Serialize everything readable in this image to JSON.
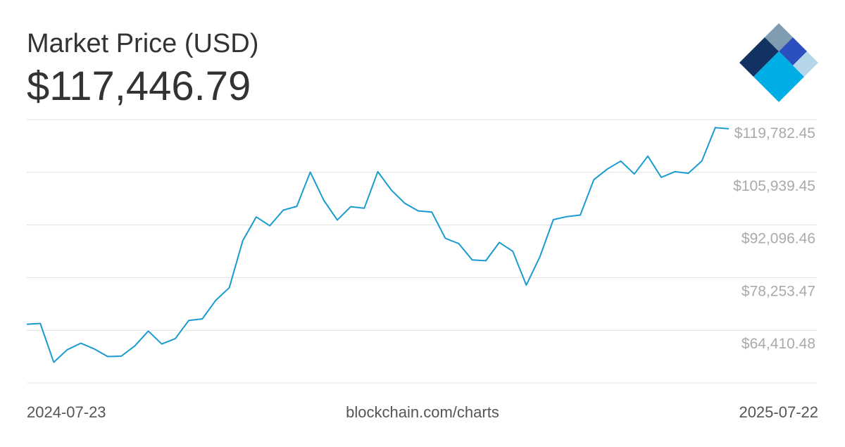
{
  "chart_data": {
    "type": "line",
    "title": "Market Price (USD)",
    "price": "$117,446.79",
    "source": "blockchain.com/charts",
    "x_start_label": "2024-07-23",
    "x_end_label": "2025-07-22",
    "color": "#1a9bd0",
    "grid": true,
    "xlim": [
      "2024-07-23",
      "2025-07-22"
    ],
    "ylim": [
      50567.5,
      119782.45
    ],
    "yticks": [
      {
        "value": 64410.48,
        "label": "$64,410.48"
      },
      {
        "value": 78253.47,
        "label": "$78,253.47"
      },
      {
        "value": 92096.46,
        "label": "$92,096.46"
      },
      {
        "value": 105939.45,
        "label": "$105,939.45"
      },
      {
        "value": 119782.45,
        "label": "$119,782.45"
      }
    ],
    "x": [
      "2024-07-23",
      "2024-07-30",
      "2024-08-06",
      "2024-08-13",
      "2024-08-20",
      "2024-08-27",
      "2024-09-03",
      "2024-09-10",
      "2024-09-17",
      "2024-09-24",
      "2024-10-01",
      "2024-10-08",
      "2024-10-15",
      "2024-10-22",
      "2024-10-29",
      "2024-11-05",
      "2024-11-12",
      "2024-11-19",
      "2024-11-26",
      "2024-12-03",
      "2024-12-10",
      "2024-12-17",
      "2024-12-24",
      "2024-12-31",
      "2025-01-07",
      "2025-01-14",
      "2025-01-21",
      "2025-01-28",
      "2025-02-04",
      "2025-02-11",
      "2025-02-18",
      "2025-02-25",
      "2025-03-04",
      "2025-03-11",
      "2025-03-18",
      "2025-03-25",
      "2025-04-01",
      "2025-04-08",
      "2025-04-15",
      "2025-04-22",
      "2025-04-29",
      "2025-05-06",
      "2025-05-13",
      "2025-05-20",
      "2025-05-27",
      "2025-06-03",
      "2025-06-10",
      "2025-06-17",
      "2025-06-24",
      "2025-07-01",
      "2025-07-08",
      "2025-07-15",
      "2025-07-22"
    ],
    "values": [
      66000,
      66200,
      56000,
      59300,
      61000,
      59500,
      57500,
      57600,
      60300,
      64200,
      60800,
      62200,
      67000,
      67400,
      72300,
      75600,
      88000,
      94200,
      91900,
      96000,
      97000,
      106000,
      98600,
      93400,
      96900,
      96500,
      106100,
      101300,
      97800,
      95800,
      95500,
      88600,
      87200,
      82900,
      82700,
      87500,
      85200,
      76300,
      83700,
      93500,
      94300,
      94700,
      104000,
      106800,
      108900,
      105500,
      110200,
      104600,
      106100,
      105700,
      108900,
      117700,
      117400
    ]
  }
}
